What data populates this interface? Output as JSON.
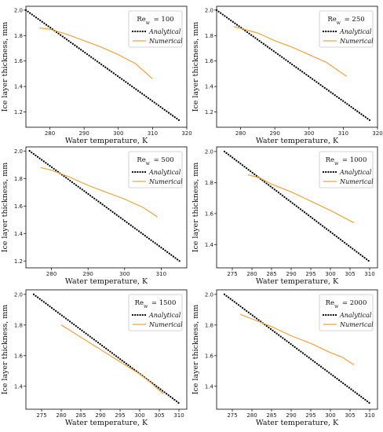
{
  "chart_data": [
    {
      "type": "line",
      "title": "Re_w = 100",
      "re_label": "Re",
      "re_sub": "w",
      "re_value": "= 100",
      "xlabel": "Water temperature, K",
      "ylabel": "Ice layer thickness, mm",
      "xlim": [
        273,
        320
      ],
      "ylim": [
        1.08,
        2.03
      ],
      "xticks": [
        280,
        290,
        300,
        310,
        320
      ],
      "yticks": [
        1.2,
        1.4,
        1.6,
        1.8,
        2.0
      ],
      "legend_position": "top-right",
      "series": [
        {
          "name": "Analytical",
          "style": "dotted",
          "color": "#000000",
          "x": [
            273,
            318
          ],
          "y": [
            2.0,
            1.13
          ]
        },
        {
          "name": "Numerical",
          "style": "solid",
          "color": "#f5a23a",
          "x": [
            277,
            280,
            285,
            290,
            295,
            300,
            305,
            310
          ],
          "y": [
            1.86,
            1.85,
            1.81,
            1.76,
            1.71,
            1.65,
            1.58,
            1.46
          ]
        }
      ]
    },
    {
      "type": "line",
      "title": "Re_w = 250",
      "re_label": "Re",
      "re_sub": "w",
      "re_value": "= 250",
      "xlabel": "Water temperature, K",
      "ylabel": "Ice layer thickness, mm",
      "xlim": [
        273,
        320
      ],
      "ylim": [
        1.08,
        2.03
      ],
      "xticks": [
        280,
        290,
        300,
        310,
        320
      ],
      "yticks": [
        1.2,
        1.4,
        1.6,
        1.8,
        2.0
      ],
      "legend_position": "top-right",
      "series": [
        {
          "name": "Analytical",
          "style": "dotted",
          "color": "#000000",
          "x": [
            273,
            318
          ],
          "y": [
            2.0,
            1.13
          ]
        },
        {
          "name": "Numerical",
          "style": "solid",
          "color": "#f5a23a",
          "x": [
            278,
            281,
            285,
            290,
            295,
            300,
            305,
            311
          ],
          "y": [
            1.87,
            1.85,
            1.82,
            1.76,
            1.71,
            1.65,
            1.59,
            1.48
          ]
        }
      ]
    },
    {
      "type": "line",
      "title": "Re_w = 500",
      "re_label": "Re",
      "re_sub": "w",
      "re_value": "= 500",
      "xlabel": "Water temperature, K",
      "ylabel": "Ice layer thickness, mm",
      "xlim": [
        273,
        317
      ],
      "ylim": [
        1.15,
        2.03
      ],
      "xticks": [
        280,
        290,
        300,
        310
      ],
      "yticks": [
        1.2,
        1.4,
        1.6,
        1.8,
        2.0
      ],
      "legend_position": "top-right",
      "series": [
        {
          "name": "Analytical",
          "style": "dotted",
          "color": "#000000",
          "x": [
            274,
            315
          ],
          "y": [
            2.0,
            1.2
          ]
        },
        {
          "name": "Numerical",
          "style": "solid",
          "color": "#f5a23a",
          "x": [
            277,
            280,
            285,
            290,
            295,
            300,
            305,
            309
          ],
          "y": [
            1.88,
            1.86,
            1.81,
            1.75,
            1.7,
            1.65,
            1.59,
            1.52
          ]
        }
      ]
    },
    {
      "type": "line",
      "title": "Re_w = 1000",
      "re_label": "Re",
      "re_sub": "w",
      "re_value": "= 1000",
      "xlabel": "Water temperature, K",
      "ylabel": "Ice layer thickness, mm",
      "xlim": [
        271,
        312
      ],
      "ylim": [
        1.25,
        2.03
      ],
      "xticks": [
        275,
        280,
        285,
        290,
        295,
        300,
        305,
        310
      ],
      "yticks": [
        1.4,
        1.6,
        1.8,
        2.0
      ],
      "legend_position": "top-right",
      "series": [
        {
          "name": "Analytical",
          "style": "dotted",
          "color": "#000000",
          "x": [
            273,
            310
          ],
          "y": [
            2.0,
            1.29
          ]
        },
        {
          "name": "Numerical",
          "style": "solid",
          "color": "#f5a23a",
          "x": [
            279,
            282,
            285,
            290,
            295,
            300,
            303,
            306
          ],
          "y": [
            1.85,
            1.83,
            1.79,
            1.74,
            1.68,
            1.62,
            1.58,
            1.54
          ]
        }
      ]
    },
    {
      "type": "line",
      "title": "Re_w = 1500",
      "re_label": "Re",
      "re_sub": "w",
      "re_value": "= 1500",
      "xlabel": "Water temperature, K",
      "ylabel": "Ice layer thickness, mm",
      "xlim": [
        271,
        312
      ],
      "ylim": [
        1.25,
        2.03
      ],
      "xticks": [
        275,
        280,
        285,
        290,
        295,
        300,
        305,
        310
      ],
      "yticks": [
        1.4,
        1.6,
        1.8,
        2.0
      ],
      "legend_position": "top-right",
      "series": [
        {
          "name": "Analytical",
          "style": "dotted",
          "color": "#000000",
          "x": [
            273,
            310
          ],
          "y": [
            2.0,
            1.29
          ]
        },
        {
          "name": "Numerical",
          "style": "solid",
          "color": "#f5a23a",
          "x": [
            280,
            282,
            285,
            290,
            295,
            300,
            303,
            306
          ],
          "y": [
            1.8,
            1.77,
            1.72,
            1.64,
            1.56,
            1.48,
            1.42,
            1.35
          ]
        }
      ]
    },
    {
      "type": "line",
      "title": "Re_w = 2000",
      "re_label": "Re",
      "re_sub": "w",
      "re_value": "= 2000",
      "xlabel": "Water temperature, K",
      "ylabel": "Ice layer thickness, mm",
      "xlim": [
        271,
        312
      ],
      "ylim": [
        1.25,
        2.03
      ],
      "xticks": [
        275,
        280,
        285,
        290,
        295,
        300,
        305,
        310
      ],
      "yticks": [
        1.4,
        1.6,
        1.8,
        2.0
      ],
      "legend_position": "top-right",
      "series": [
        {
          "name": "Analytical",
          "style": "dotted",
          "color": "#000000",
          "x": [
            273,
            310
          ],
          "y": [
            2.0,
            1.29
          ]
        },
        {
          "name": "Numerical",
          "style": "solid",
          "color": "#f5a23a",
          "x": [
            277,
            280,
            285,
            290,
            295,
            300,
            303,
            306
          ],
          "y": [
            1.87,
            1.84,
            1.79,
            1.73,
            1.68,
            1.62,
            1.59,
            1.54
          ]
        }
      ]
    }
  ]
}
